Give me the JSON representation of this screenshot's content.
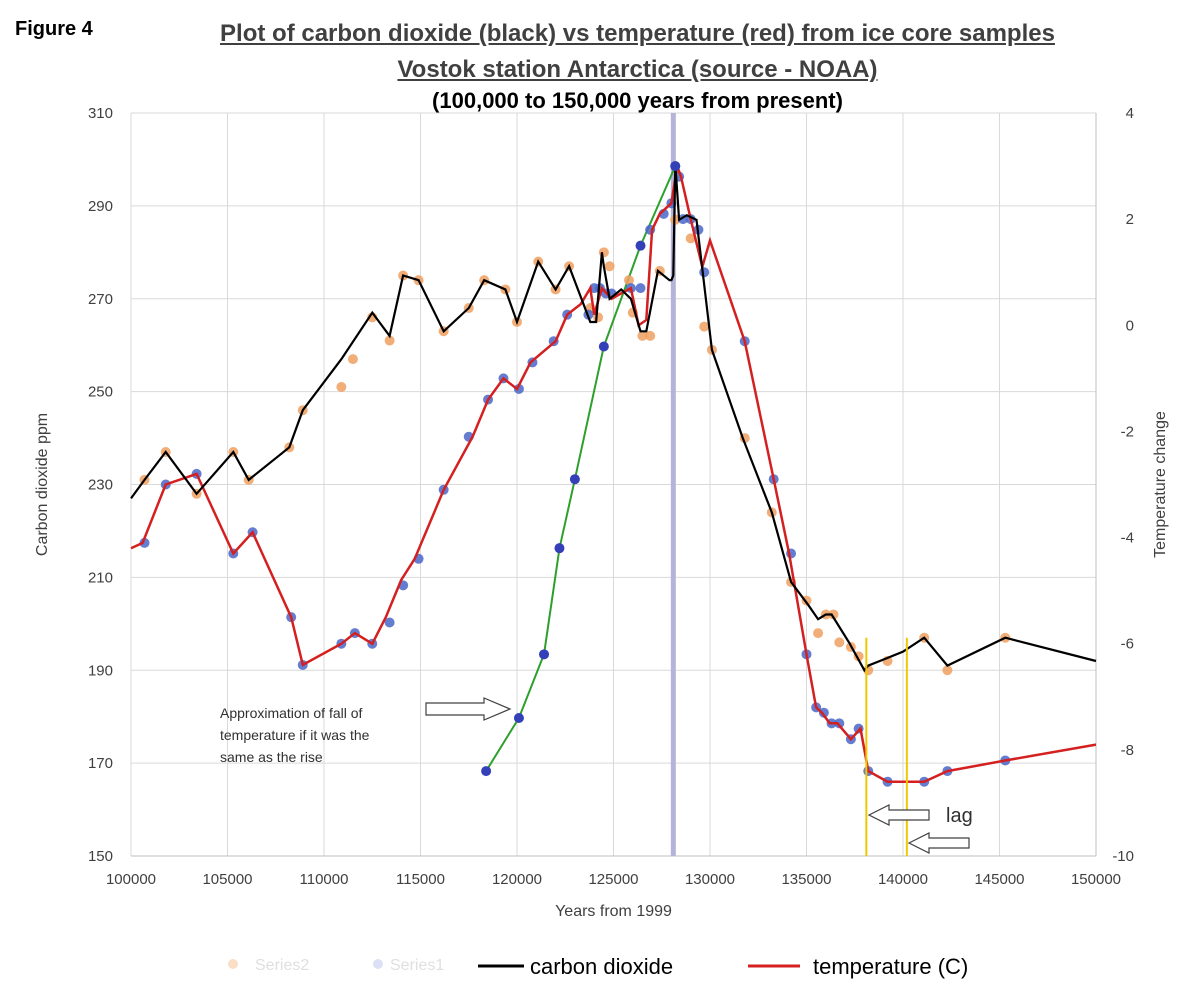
{
  "figure_label": "Figure 4",
  "chart_data": {
    "type": "line",
    "title": "Plot of carbon dioxide (black) vs temperature (red) from ice core samples",
    "subtitle": "Vostok station Antarctica (source  -  NOAA)",
    "subtitle2": "(100,000 to 150,000 years from present)",
    "xlabel": "Years from 1999",
    "ylabel": "Carbon dioxide ppm",
    "y2label": "Temperature change",
    "xlim": [
      100000,
      150000
    ],
    "ylim": [
      150,
      310
    ],
    "y2lim": [
      -10,
      4
    ],
    "xticks": [
      "100000",
      "105000",
      "110000",
      "115000",
      "120000",
      "125000",
      "130000",
      "135000",
      "140000",
      "145000",
      "150000"
    ],
    "yticks": [
      "150",
      "170",
      "190",
      "210",
      "230",
      "250",
      "270",
      "290",
      "310"
    ],
    "y2ticks": [
      "-10",
      "-8",
      "-6",
      "-4",
      "-2",
      "0",
      "2",
      "4"
    ],
    "grid": true,
    "legend_position": "bottom",
    "colors": {
      "co2": "#000000",
      "temp": "#d42020",
      "approx": "#2ca02c",
      "marker_blue": "#4a66c8",
      "marker_orange": "#f0a060",
      "vline": "#b4b4d8",
      "lag": "#f0c800"
    },
    "series": [
      {
        "name": "carbon dioxide",
        "axis": "left",
        "x": [
          100000,
          100700,
          101800,
          103400,
          105300,
          106100,
          108200,
          108900,
          110900,
          112500,
          113400,
          114100,
          114900,
          116200,
          117500,
          118300,
          119400,
          120000,
          121100,
          122000,
          122700,
          123800,
          124100,
          124400,
          124500,
          124800,
          125400,
          125900,
          126400,
          126700,
          127300,
          127900,
          128000,
          128100,
          128200,
          128400,
          128800,
          129300,
          130100,
          131700,
          133200,
          134200,
          135100,
          135600,
          136000,
          136300,
          137200,
          138000,
          138200,
          138800,
          140000,
          141100,
          142300,
          145300,
          150000
        ],
        "values": [
          227,
          231,
          237,
          228,
          237,
          231,
          238,
          246,
          257,
          267,
          262,
          275,
          274,
          263,
          268,
          274,
          272,
          265,
          278,
          272,
          277,
          265,
          265,
          280,
          277,
          270,
          272,
          270,
          263,
          263,
          276,
          274,
          274,
          275,
          299,
          287,
          288,
          287,
          259,
          240,
          224,
          209,
          204,
          201,
          202,
          202,
          196,
          190,
          191,
          192,
          194,
          197,
          191,
          197,
          192
        ]
      },
      {
        "name": "temperature (C)",
        "axis": "right",
        "x": [
          100000,
          100600,
          101800,
          103400,
          105300,
          106300,
          108300,
          108900,
          110900,
          111600,
          112500,
          113200,
          114000,
          114700,
          116200,
          117700,
          118500,
          119300,
          120000,
          120700,
          122000,
          122600,
          123300,
          123800,
          124000,
          124400,
          124900,
          125400,
          125900,
          126300,
          126700,
          127000,
          127400,
          128000,
          128300,
          128500,
          129000,
          129600,
          130000,
          131800,
          133300,
          134100,
          135000,
          135500,
          135800,
          136200,
          136600,
          137300,
          137800,
          138200,
          139200,
          141100,
          142300,
          145300,
          150000
        ],
        "values": [
          -4.2,
          -4.1,
          -3.0,
          -2.8,
          -4.3,
          -3.9,
          -5.5,
          -6.4,
          -6.0,
          -5.8,
          -6.0,
          -5.5,
          -4.8,
          -4.4,
          -3.1,
          -2.1,
          -1.4,
          -1.0,
          -1.2,
          -0.7,
          -0.3,
          0.2,
          0.4,
          0.7,
          0.2,
          0.7,
          0.5,
          0.6,
          0.7,
          0.0,
          0.1,
          1.8,
          2.1,
          2.3,
          3.0,
          2.8,
          2.0,
          1.1,
          1.6,
          -0.3,
          -2.9,
          -4.3,
          -6.2,
          -7.2,
          -7.3,
          -7.5,
          -7.5,
          -7.8,
          -7.6,
          -8.4,
          -8.6,
          -8.6,
          -8.4,
          -8.2,
          -7.9
        ]
      },
      {
        "name": "Approximation of fall of temperature if it was the same as the rise",
        "axis": "right",
        "x": [
          118400,
          120100,
          121400,
          122200,
          123000,
          124500,
          126400,
          128200
        ],
        "values": [
          -8.4,
          -7.4,
          -6.2,
          -4.2,
          -2.9,
          -0.4,
          1.5,
          3.0
        ]
      }
    ],
    "markers": {
      "blue": [
        [
          100700,
          -4.1
        ],
        [
          101800,
          -3.0
        ],
        [
          103400,
          -2.8
        ],
        [
          105300,
          -4.3
        ],
        [
          106300,
          -3.9
        ],
        [
          108300,
          -5.5
        ],
        [
          108900,
          -6.4
        ],
        [
          110900,
          -6.0
        ],
        [
          111600,
          -5.8
        ],
        [
          112500,
          -6.0
        ],
        [
          113400,
          -5.6
        ],
        [
          114100,
          -4.9
        ],
        [
          114900,
          -4.4
        ],
        [
          116200,
          -3.1
        ],
        [
          117500,
          -2.1
        ],
        [
          118500,
          -1.4
        ],
        [
          119300,
          -1.0
        ],
        [
          120100,
          -1.2
        ],
        [
          120800,
          -0.7
        ],
        [
          121900,
          -0.3
        ],
        [
          122600,
          0.2
        ],
        [
          123700,
          0.2
        ],
        [
          124000,
          0.7
        ],
        [
          124300,
          0.7
        ],
        [
          124600,
          0.6
        ],
        [
          124900,
          0.6
        ],
        [
          125900,
          0.7
        ],
        [
          126400,
          0.7
        ],
        [
          126900,
          1.8
        ],
        [
          127600,
          2.1
        ],
        [
          128000,
          2.3
        ],
        [
          128200,
          3.0
        ],
        [
          128400,
          2.8
        ],
        [
          128600,
          2.0
        ],
        [
          129000,
          2.0
        ],
        [
          129400,
          1.8
        ],
        [
          129700,
          1.0
        ],
        [
          131800,
          -0.3
        ],
        [
          133300,
          -2.9
        ],
        [
          134200,
          -4.3
        ],
        [
          135000,
          -6.2
        ],
        [
          135500,
          -7.2
        ],
        [
          135900,
          -7.3
        ],
        [
          136300,
          -7.5
        ],
        [
          136700,
          -7.5
        ],
        [
          137300,
          -7.8
        ],
        [
          137700,
          -7.6
        ],
        [
          138200,
          -8.4
        ],
        [
          139200,
          -8.6
        ],
        [
          141100,
          -8.6
        ],
        [
          142300,
          -8.4
        ],
        [
          145300,
          -8.2
        ]
      ],
      "orange_co2": [
        [
          100700,
          231
        ],
        [
          101800,
          237
        ],
        [
          103400,
          228
        ],
        [
          105300,
          237
        ],
        [
          106100,
          231
        ],
        [
          108200,
          238
        ],
        [
          108900,
          246
        ],
        [
          110900,
          251
        ],
        [
          111500,
          257
        ],
        [
          112500,
          266
        ],
        [
          113400,
          261
        ],
        [
          114100,
          275
        ],
        [
          114900,
          274
        ],
        [
          116200,
          263
        ],
        [
          117500,
          268
        ],
        [
          118300,
          274
        ],
        [
          119400,
          272
        ],
        [
          120000,
          265
        ],
        [
          121100,
          278
        ],
        [
          122000,
          272
        ],
        [
          122700,
          277
        ],
        [
          123800,
          268
        ],
        [
          124200,
          266
        ],
        [
          124500,
          280
        ],
        [
          124800,
          277
        ],
        [
          125800,
          274
        ],
        [
          126000,
          267
        ],
        [
          126500,
          262
        ],
        [
          126900,
          262
        ],
        [
          127400,
          276
        ],
        [
          128200,
          287
        ],
        [
          129000,
          283
        ],
        [
          129700,
          264
        ],
        [
          130100,
          259
        ],
        [
          131800,
          240
        ],
        [
          133200,
          224
        ],
        [
          134200,
          209
        ],
        [
          135000,
          205
        ],
        [
          135600,
          198
        ],
        [
          136000,
          202
        ],
        [
          136400,
          202
        ],
        [
          136700,
          196
        ],
        [
          137300,
          195
        ],
        [
          137700,
          193
        ],
        [
          138200,
          190
        ],
        [
          139200,
          192
        ],
        [
          141100,
          197
        ],
        [
          142300,
          190
        ],
        [
          145300,
          197
        ]
      ]
    },
    "annotations": [
      {
        "text": "Approximation of fall of temperature  if it was the same as the rise",
        "lines": [
          "Approximation of fall of",
          "temperature  if it was the",
          "same as the rise"
        ]
      },
      {
        "text": "lag"
      }
    ],
    "lag_lines_x": [
      138100,
      140200
    ],
    "peak_line_x": 128100,
    "legend": [
      "Series2",
      "Series1",
      "carbon dioxide",
      "temperature (C)"
    ]
  }
}
